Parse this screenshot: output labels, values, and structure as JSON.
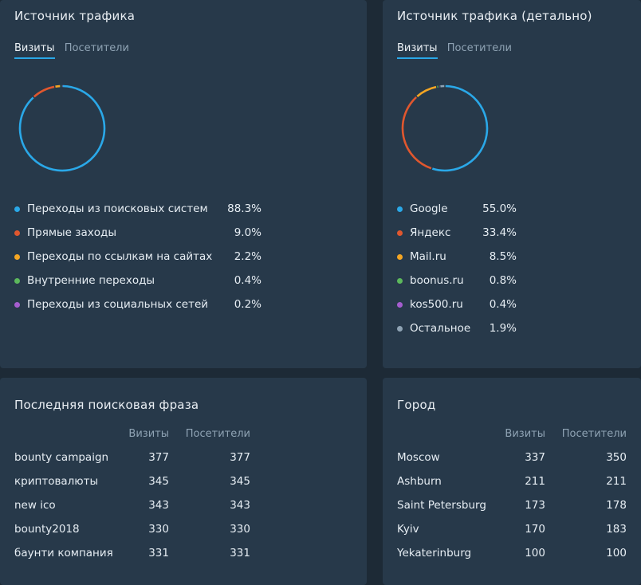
{
  "traffic": {
    "title": "Источник трафика",
    "tabs": [
      {
        "label": "Визиты",
        "active": true
      },
      {
        "label": "Посетители",
        "active": false
      }
    ],
    "items": [
      {
        "name": "Переходы из поисковых систем",
        "pct": "88.3%",
        "value": 88.3,
        "color": "#2aa8e8"
      },
      {
        "name": "Прямые заходы",
        "pct": "9.0%",
        "value": 9.0,
        "color": "#e0572e"
      },
      {
        "name": "Переходы по ссылкам на сайтах",
        "pct": "2.2%",
        "value": 2.2,
        "color": "#f5a623"
      },
      {
        "name": "Внутренние переходы",
        "pct": "0.4%",
        "value": 0.4,
        "color": "#5cb85c"
      },
      {
        "name": "Переходы из социальных сетей",
        "pct": "0.2%",
        "value": 0.2,
        "color": "#a55dcf"
      }
    ]
  },
  "traffic_detail": {
    "title": "Источник трафика (детально)",
    "tabs": [
      {
        "label": "Визиты",
        "active": true
      },
      {
        "label": "Посетители",
        "active": false
      }
    ],
    "items": [
      {
        "name": "Google",
        "pct": "55.0%",
        "value": 55.0,
        "color": "#2aa8e8"
      },
      {
        "name": "Яндекс",
        "pct": "33.4%",
        "value": 33.4,
        "color": "#e0572e"
      },
      {
        "name": "Mail.ru",
        "pct": "8.5%",
        "value": 8.5,
        "color": "#f5a623"
      },
      {
        "name": "boonus.ru",
        "pct": "0.8%",
        "value": 0.8,
        "color": "#5cb85c"
      },
      {
        "name": "kos500.ru",
        "pct": "0.4%",
        "value": 0.4,
        "color": "#a55dcf"
      },
      {
        "name": "Остальное",
        "pct": "1.9%",
        "value": 1.9,
        "color": "#8fa3b4"
      }
    ]
  },
  "search_phrase": {
    "title": "Последняя поисковая фраза",
    "col_visits": "Визиты",
    "col_visitors": "Посетители",
    "rows": [
      {
        "phrase": "bounty campaign",
        "visits": "377",
        "visitors": "377"
      },
      {
        "phrase": "криптовалюты",
        "visits": "345",
        "visitors": "345"
      },
      {
        "phrase": "new ico",
        "visits": "343",
        "visitors": "343"
      },
      {
        "phrase": "bounty2018",
        "visits": "330",
        "visitors": "330"
      },
      {
        "phrase": "баунти компания",
        "visits": "331",
        "visitors": "331"
      }
    ]
  },
  "city": {
    "title": "Город",
    "col_visits": "Визиты",
    "col_visitors": "Посетители",
    "rows": [
      {
        "city": "Moscow",
        "visits": "337",
        "visitors": "350"
      },
      {
        "city": "Ashburn",
        "visits": "211",
        "visitors": "211"
      },
      {
        "city": "Saint Petersburg",
        "visits": "173",
        "visitors": "178"
      },
      {
        "city": "Kyiv",
        "visits": "170",
        "visitors": "183"
      },
      {
        "city": "Yekaterinburg",
        "visits": "100",
        "visitors": "100"
      }
    ]
  }
}
